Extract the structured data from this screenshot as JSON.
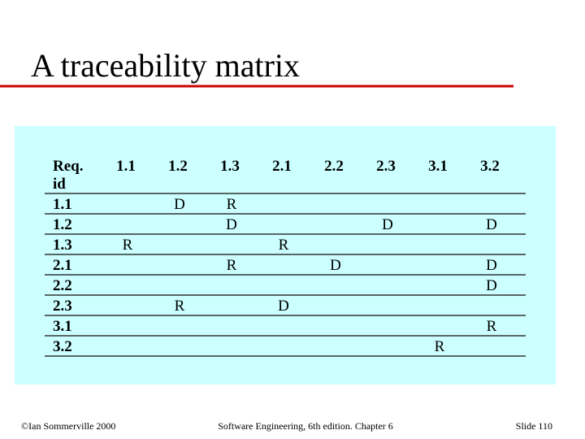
{
  "title": "A traceability matrix",
  "table": {
    "corner": [
      "Req.",
      "id"
    ],
    "columns": [
      "1.1",
      "1.2",
      "1.3",
      "2.1",
      "2.2",
      "2.3",
      "3.1",
      "3.2"
    ],
    "rows": [
      {
        "id": "1.1",
        "cells": [
          null,
          "D",
          "R",
          null,
          null,
          null,
          null,
          null
        ]
      },
      {
        "id": "1.2",
        "cells": [
          null,
          null,
          "D",
          null,
          null,
          "D",
          null,
          "D"
        ]
      },
      {
        "id": "1.3",
        "cells": [
          "R",
          null,
          null,
          "R",
          null,
          null,
          null,
          null
        ]
      },
      {
        "id": "2.1",
        "cells": [
          null,
          null,
          "R",
          null,
          "D",
          null,
          null,
          "D"
        ]
      },
      {
        "id": "2.2",
        "cells": [
          null,
          null,
          null,
          null,
          null,
          null,
          null,
          "D"
        ]
      },
      {
        "id": "2.3",
        "cells": [
          null,
          "R",
          null,
          "D",
          null,
          null,
          null,
          null
        ]
      },
      {
        "id": "3.1",
        "cells": [
          null,
          null,
          null,
          null,
          null,
          null,
          null,
          "R"
        ]
      },
      {
        "id": "3.2",
        "cells": [
          null,
          null,
          null,
          null,
          null,
          null,
          "R",
          null
        ]
      }
    ]
  },
  "footer": {
    "left": "©Ian Sommerville 2000",
    "center": "Software Engineering, 6th edition. Chapter 6",
    "right": "Slide 110"
  }
}
